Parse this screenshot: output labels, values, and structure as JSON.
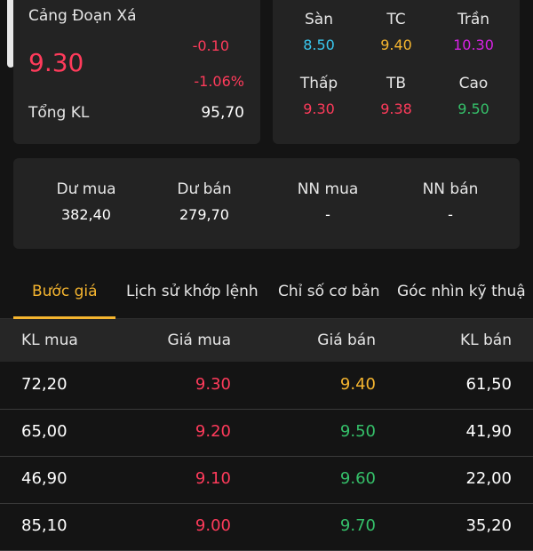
{
  "stock": {
    "name": "Cảng Đoạn Xá",
    "price": "9.30",
    "change": "-0.10",
    "change_pct": "-1.06%",
    "volume_label": "Tổng KL",
    "volume_value": "95,70"
  },
  "price_grid": [
    {
      "label": "Sàn",
      "value": "8.50",
      "color": "#39c8f0"
    },
    {
      "label": "TC",
      "value": "9.40",
      "color": "#f5b52f"
    },
    {
      "label": "Trần",
      "value": "10.30",
      "color": "#d822e6"
    },
    {
      "label": "Thấp",
      "value": "9.30",
      "color": "#ff3b5b"
    },
    {
      "label": "TB",
      "value": "9.38",
      "color": "#ff3b5b"
    },
    {
      "label": "Cao",
      "value": "9.50",
      "color": "#35c16a"
    }
  ],
  "order_summary": [
    {
      "label": "Dư mua",
      "value": "382,40"
    },
    {
      "label": "Dư bán",
      "value": "279,70"
    },
    {
      "label": "NN mua",
      "value": "-"
    },
    {
      "label": "NN bán",
      "value": "-"
    }
  ],
  "tabs": [
    {
      "label": "Bước giá",
      "active": true
    },
    {
      "label": "Lịch sử khớp lệnh",
      "active": false
    },
    {
      "label": "Chỉ số cơ bản",
      "active": false
    },
    {
      "label": "Góc nhìn kỹ thuậ",
      "active": false
    }
  ],
  "table": {
    "headers": [
      "KL mua",
      "Giá mua",
      "Giá bán",
      "KL bán"
    ],
    "rows": [
      {
        "bid_vol": "72,20",
        "bid_price": "9.30",
        "ask_price": "9.40",
        "ask_vol": "61,50",
        "bid_color": "#ff3b5b",
        "ask_color": "#f5b52f"
      },
      {
        "bid_vol": "65,00",
        "bid_price": "9.20",
        "ask_price": "9.50",
        "ask_vol": "41,90",
        "bid_color": "#ff3b5b",
        "ask_color": "#35c16a"
      },
      {
        "bid_vol": "46,90",
        "bid_price": "9.10",
        "ask_price": "9.60",
        "ask_vol": "22,00",
        "bid_color": "#ff3b5b",
        "ask_color": "#35c16a"
      },
      {
        "bid_vol": "85,10",
        "bid_price": "9.00",
        "ask_price": "9.70",
        "ask_vol": "35,20",
        "bid_color": "#ff3b5b",
        "ask_color": "#35c16a"
      }
    ]
  }
}
